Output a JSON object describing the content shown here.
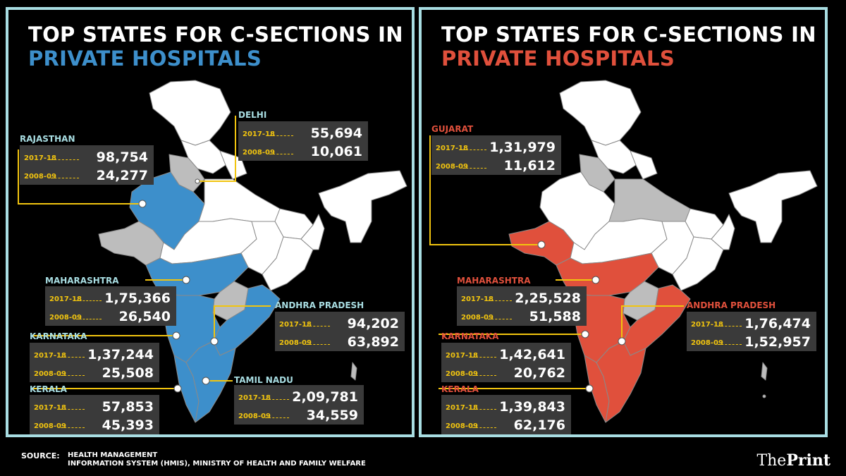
{
  "colors": {
    "left_accent": "#3d8fcb",
    "right_accent": "#e0503c",
    "highlight_gray": "#bdbdbd",
    "state_white": "#ffffff",
    "label_yellow": "#f1c40f",
    "frame": "#a8dde2"
  },
  "left": {
    "title_line1": "TOP STATES FOR C-SECTIONS IN",
    "title_line2": "PRIVATE HOSPITALS",
    "states": [
      {
        "name": "RAJASTHAN",
        "y1": "2017-18",
        "v1": "98,754",
        "y2": "2008-09",
        "v2": "24,277"
      },
      {
        "name": "DELHI",
        "y1": "2017-18",
        "v1": "55,694",
        "y2": "2008-09",
        "v2": "10,061"
      },
      {
        "name": "MAHARASHTRA",
        "y1": "2017-18",
        "v1": "1,75,366",
        "y2": "2008-09",
        "v2": "26,540"
      },
      {
        "name": "ANDHRA PRADESH",
        "y1": "2017-18",
        "v1": "94,202",
        "y2": "2008-09",
        "v2": "63,892"
      },
      {
        "name": "KARNATAKA",
        "y1": "2017-18",
        "v1": "1,37,244",
        "y2": "2008-09",
        "v2": "25,508"
      },
      {
        "name": "KERALA",
        "y1": "2017-18",
        "v1": "57,853",
        "y2": "2008-09",
        "v2": "45,393"
      },
      {
        "name": "TAMIL NADU",
        "y1": "2017-18",
        "v1": "2,09,781",
        "y2": "2008-09",
        "v2": "34,559"
      }
    ]
  },
  "right": {
    "title_line1": "TOP STATES FOR C-SECTIONS IN",
    "title_line2": "PRIVATE HOSPITALS",
    "states": [
      {
        "name": "GUJARAT",
        "y1": "2017-18",
        "v1": "1,31,979",
        "y2": "2008-09",
        "v2": "11,612"
      },
      {
        "name": "MAHARASHTRA",
        "y1": "2017-18",
        "v1": "2,25,528",
        "y2": "2008-09",
        "v2": "51,588"
      },
      {
        "name": "ANDHRA PRADESH",
        "y1": "2017-18",
        "v1": "1,76,474",
        "y2": "2008-09",
        "v2": "1,52,957"
      },
      {
        "name": "KARNATAKA",
        "y1": "2017-18",
        "v1": "1,42,641",
        "y2": "2008-09",
        "v2": "20,762"
      },
      {
        "name": "KERALA",
        "y1": "2017-18",
        "v1": "1,39,843",
        "y2": "2008-09",
        "v2": "62,176"
      }
    ]
  },
  "footer": {
    "source_label": "SOURCE:",
    "source_line1": "HEALTH MANAGEMENT",
    "source_line2": "INFORMATION SYSTEM (HMIS), MINISTRY OF HEALTH AND FAMILY WELFARE",
    "logo_pre": "The",
    "logo_bold": "Print"
  }
}
